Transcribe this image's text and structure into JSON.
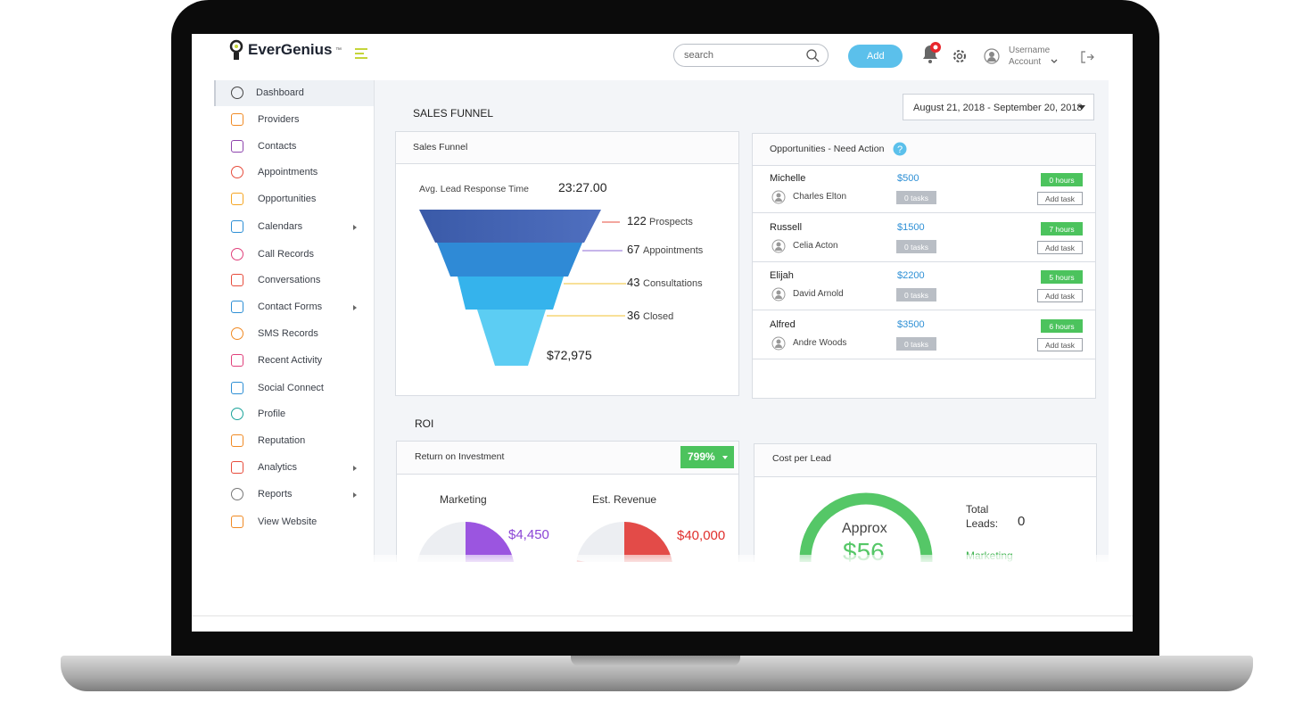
{
  "header": {
    "logo": "EverGenius",
    "logo_mark": "™",
    "search_placeholder": "search",
    "add_button": "Add",
    "username": "Username",
    "account": "Account"
  },
  "sidebar": {
    "items": [
      "Dashboard",
      "Providers",
      "Contacts",
      "Appointments",
      "Opportunities",
      "Calendars",
      "Call Records",
      "Conversations",
      "Contact Forms",
      "SMS Records",
      "Recent Activity",
      "Social Connect",
      "Profile",
      "Reputation",
      "Analytics",
      "Reports",
      "View Website"
    ]
  },
  "sales_funnel": {
    "section_title": "SALES FUNNEL",
    "date_range": "August 21, 2018 - September 20, 2018",
    "card_title": "Sales Funnel",
    "response_label": "Avg. Lead Response Time",
    "response_value": "23:27.00",
    "stages": [
      {
        "count": 122,
        "label": "Prospects"
      },
      {
        "count": 67,
        "label": "Appointments"
      },
      {
        "count": 43,
        "label": "Consultations"
      },
      {
        "count": 36,
        "label": "Closed"
      }
    ],
    "total": "$72,975"
  },
  "opportunities": {
    "title": "Opportunities - Need Action",
    "rows": [
      {
        "name": "Michelle",
        "contact": "Charles Elton",
        "amount": "$500",
        "tasks": "0 tasks",
        "hours": "0 hours",
        "action": "Add task"
      },
      {
        "name": "Russell",
        "contact": "Celia Acton",
        "amount": "$1500",
        "tasks": "0 tasks",
        "hours": "7 hours",
        "action": "Add task"
      },
      {
        "name": "Elijah",
        "contact": "David Arnold",
        "amount": "$2200",
        "tasks": "0 tasks",
        "hours": "5 hours",
        "action": "Add task"
      },
      {
        "name": "Alfred",
        "contact": "Andre Woods",
        "amount": "$3500",
        "tasks": "0 tasks",
        "hours": "6 hours",
        "action": "Add task"
      }
    ]
  },
  "roi": {
    "section_title": "ROI",
    "card_title": "Return on Investment",
    "badge": "799%",
    "marketing_label": "Marketing",
    "marketing_value": "$4,450",
    "revenue_label": "Est. Revenue",
    "revenue_value": "$40,000"
  },
  "cost_per_lead": {
    "title": "Cost per Lead",
    "approx_label": "Approx",
    "approx_value": "$56",
    "total_leads_label": "Total Leads:",
    "total_leads_value": 0,
    "marketing_label": "Marketing"
  }
}
